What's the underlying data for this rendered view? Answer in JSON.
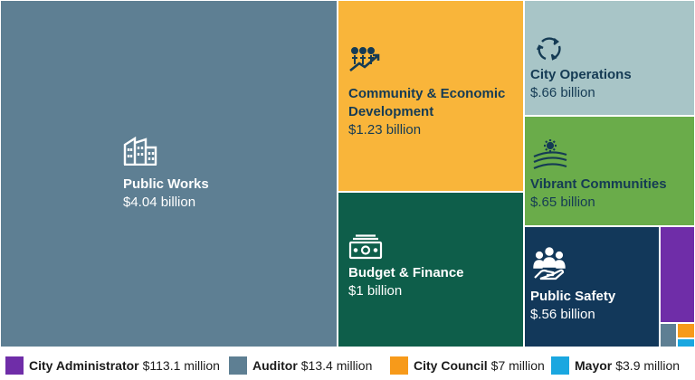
{
  "chart_data": {
    "type": "treemap",
    "tiles": [
      {
        "id": "public-works",
        "name": "Public Works",
        "value_label": "$4.04 billion",
        "value_millions": 4040,
        "color": "#5e7f93",
        "text_color": "#ffffff",
        "icon": "building-icon"
      },
      {
        "id": "community-economic-development",
        "name_lines": [
          "Community & Economic",
          "Development"
        ],
        "value_label": "$1.23 billion",
        "value_millions": 1230,
        "color": "#f9b53a",
        "text_color": "#153b54",
        "icon": "growth-people-icon"
      },
      {
        "id": "city-operations",
        "name": "City Operations",
        "value_label": "$.66 billion",
        "value_millions": 660,
        "color": "#a8c5c7",
        "text_color": "#153b54",
        "icon": "cycle-arrows-icon"
      },
      {
        "id": "vibrant-communities",
        "name": "Vibrant Communities",
        "value_label": "$.65 billion",
        "value_millions": 650,
        "color": "#6aac4a",
        "text_color": "#153b54",
        "icon": "landscape-sun-icon"
      },
      {
        "id": "budget-finance",
        "name": "Budget & Finance",
        "value_label": "$1 billion",
        "value_millions": 1000,
        "color": "#0e5e4a",
        "text_color": "#ffffff",
        "icon": "money-bill-icon"
      },
      {
        "id": "public-safety",
        "name": "Public Safety",
        "value_label": "$.56 billion",
        "value_millions": 560,
        "color": "#12385a",
        "text_color": "#ffffff",
        "icon": "people-hand-icon"
      },
      {
        "id": "city-administrator",
        "value_millions": 113.1,
        "color": "#6f2da8"
      },
      {
        "id": "auditor",
        "value_millions": 13.4,
        "color": "#5e7f93"
      },
      {
        "id": "city-council",
        "value_millions": 7,
        "color": "#f79a1a"
      },
      {
        "id": "mayor",
        "value_millions": 3.9,
        "color": "#1aa7e0"
      }
    ],
    "legend": [
      {
        "id": "city-administrator",
        "name": "City Administrator",
        "value": "$113.1 million",
        "color": "#6f2da8"
      },
      {
        "id": "auditor",
        "name": "Auditor",
        "value": "$13.4 million",
        "color": "#5e7f93"
      },
      {
        "id": "city-council",
        "name": "City Council",
        "value": "$7 million",
        "color": "#f79a1a"
      },
      {
        "id": "mayor",
        "name": "Mayor",
        "value": "$3.9 million",
        "color": "#1aa7e0"
      }
    ]
  }
}
